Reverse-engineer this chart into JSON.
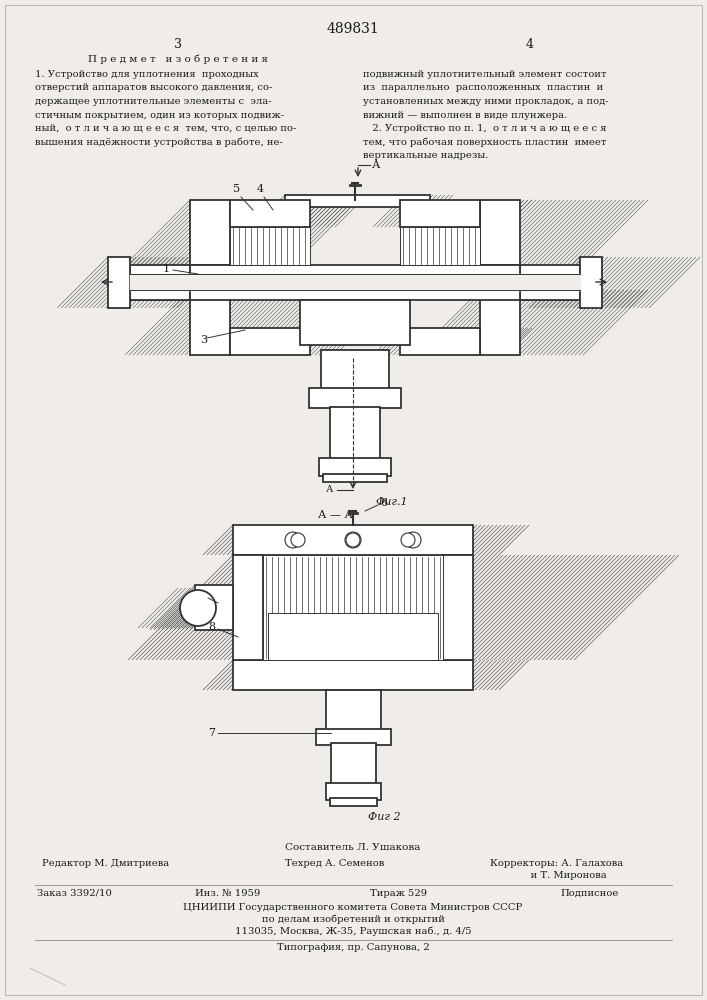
{
  "patent_number": "489831",
  "page_left": "3",
  "page_right": "4",
  "title_left": "П р е д м е т   и з о б р е т е н и я",
  "text_left_1": "1. Устройство для уплотнения  проходных",
  "text_left_2": "отверстий аппаратов высокого давления, со-",
  "text_left_3": "держащее уплотнительные элементы с  эла-",
  "text_left_4": "стичным покрытием, один из которых подвиж-",
  "text_left_5": "ный,  о т л и ч а ю щ е е с я  тем, что, с целью по-",
  "text_left_6": "вышения надёжности устройства в работе, не-",
  "text_right_1": "подвижный уплотнительный элемент состоит",
  "text_right_2": "из  параллельно  расположенных  пластин  и",
  "text_right_3": "установленных между ними прокладок, а под-",
  "text_right_4": "вижний — выполнен в виде плунжера.",
  "text_right_5": "   2. Устройство по п. 1,  о т л и ч а ю щ е е с я",
  "text_right_6": "тем, что рабочая поверхность пластин  имеет",
  "text_right_7": "вертикальные надрезы.",
  "fig1_label": "Фиг.1",
  "fig2_label": "Фиг 2",
  "composer": "Составитель Л. Ушакова",
  "editor": "Редактор М. Дмитриева",
  "typist": "Техред А. Семенов",
  "corrector1": "Корректоры: А. Галахова",
  "corrector2": "             и Т. Миронова",
  "order": "Заказ 3392/10",
  "inv": "Инз. № 1959",
  "circulation": "Тираж 529",
  "signed": "Подписное",
  "org_line1": "ЦНИИПИ Государственного комитета Совета Министров СССР",
  "org_line2": "по делам изобретений и открытий",
  "org_line3": "113035, Москва, Ж-35, Раушская наб., д. 4/5",
  "print_org": "Типография, пр. Сапунова, 2",
  "bg_color": "#f0ede8",
  "text_color": "#1a1a1a",
  "line_color": "#333333",
  "hatch_color": "#555555",
  "white": "#ffffff"
}
